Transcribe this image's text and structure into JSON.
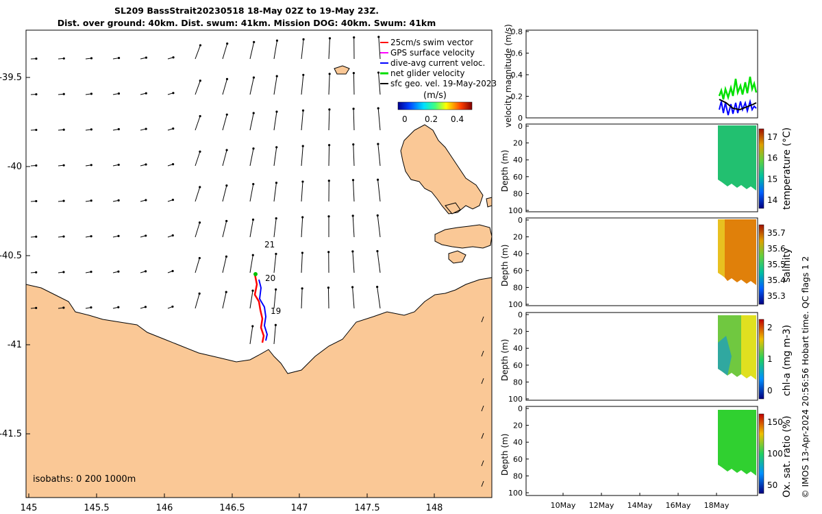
{
  "title": {
    "line1": "SL209 BassStrait20230518 18-May 02Z to 19-May 23Z.",
    "line2": "Dist. over ground: 40km. Dist. swum: 41km. Mission DOG: 40km. Swum: 41km"
  },
  "map": {
    "lon_ticks": [
      "145",
      "145.5",
      "146",
      "146.5",
      "147",
      "147.5",
      "148"
    ],
    "lat_ticks": [
      "-39.5",
      "-40",
      "-40.5",
      "-41",
      "-41.5"
    ],
    "legend": [
      {
        "label": "25cm/s swim vector",
        "color": "#ff0000"
      },
      {
        "label": "GPS surface velocity",
        "color": "#ff00ff"
      },
      {
        "label": "dive-avg current veloc.",
        "color": "#0000ff"
      },
      {
        "label": "net glider velocity",
        "color": "#00dd00"
      },
      {
        "label": "sfc geo. vel. 19-May-2023",
        "color": "#000000"
      }
    ],
    "colorbar": {
      "label": "(m/s)",
      "ticks": [
        "0",
        "0.2",
        "0.4"
      ]
    },
    "day_labels": [
      "21",
      "20",
      "19"
    ],
    "isobaths_label": "isobaths: 0   200  1000m",
    "land_color": "#fac896"
  },
  "panels": {
    "velocity": {
      "ylabel": "velocity magnitude (m/s)",
      "yticks": [
        "0.8",
        "0.6",
        "0.4",
        "0.2",
        "0"
      ]
    },
    "temperature": {
      "ylabel": "Depth (m)",
      "cbar_label": "temperature (°C)",
      "cbar_ticks": [
        "17",
        "16",
        "15",
        "14"
      ]
    },
    "salinity": {
      "ylabel": "Depth (m)",
      "cbar_label": "salinity",
      "cbar_ticks": [
        "35.7",
        "35.6",
        "35.5",
        "35.4",
        "35.3"
      ]
    },
    "chla": {
      "ylabel": "Depth (m)",
      "cbar_label": "chl-a (mg m-3)",
      "cbar_ticks": [
        "2",
        "1",
        "0"
      ]
    },
    "oxygen": {
      "ylabel": "Depth (m)",
      "cbar_label": "Ox. sat. ratio (%)",
      "cbar_ticks": [
        "150",
        "100",
        "50"
      ]
    },
    "depth_ticks": [
      "0",
      "20",
      "40",
      "60",
      "80",
      "100"
    ],
    "date_ticks": [
      "10May",
      "12May",
      "14May",
      "16May",
      "18May"
    ]
  },
  "footer": "© IMOS 13-Apr-2024 20:56:56 Hobart time. QC flags 1  2"
}
